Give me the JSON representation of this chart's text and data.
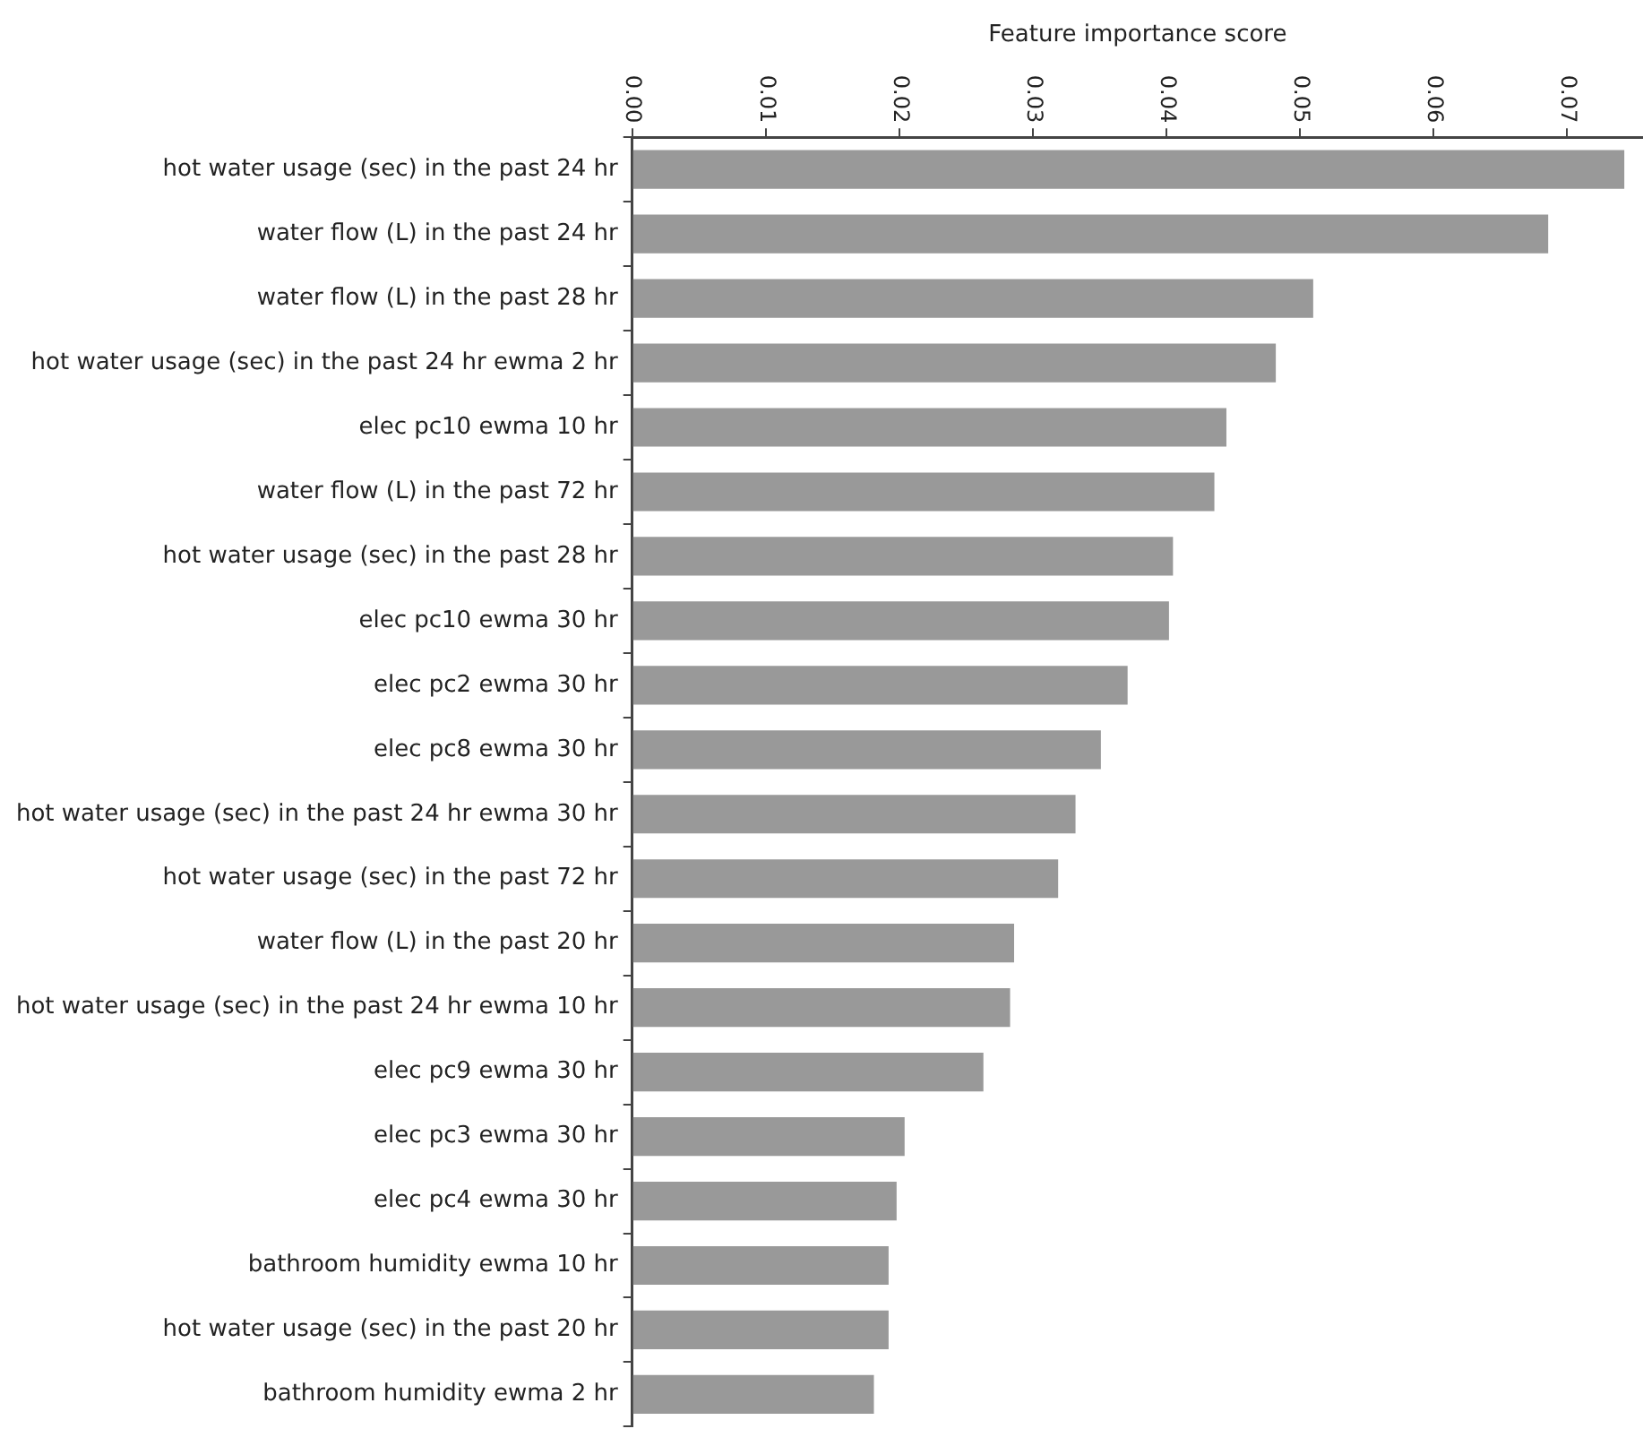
{
  "chart_data": {
    "type": "bar",
    "orientation": "horizontal",
    "xlabel": "Feature importance score",
    "categories": [
      "hot water usage (sec) in the past 24 hr",
      "water flow (L) in the past 24 hr",
      "water flow (L) in the past 28 hr",
      "hot water usage (sec) in the past 24 hr ewma 2 hr",
      "elec pc10 ewma 10 hr",
      "water flow (L) in the past 72 hr",
      "hot water usage (sec) in the past 28 hr",
      "elec pc10 ewma 30 hr",
      "elec pc2 ewma 30 hr",
      "elec pc8 ewma 30 hr",
      "hot water usage (sec) in the past 24 hr ewma 30 hr",
      "hot water usage (sec) in the past 72 hr",
      "water flow (L) in the past 20 hr",
      "hot water usage (sec) in the past 24 hr ewma 10 hr",
      "elec pc9 ewma 30 hr",
      "elec pc3 ewma 30 hr",
      "elec pc4 ewma 30 hr",
      "bathroom humidity ewma 10 hr",
      "hot water usage (sec) in the past 20 hr",
      "bathroom humidity ewma 2 hr"
    ],
    "values": [
      0.0743,
      0.0686,
      0.051,
      0.0482,
      0.0445,
      0.0436,
      0.0405,
      0.0402,
      0.0371,
      0.0351,
      0.0332,
      0.0319,
      0.0286,
      0.0283,
      0.0263,
      0.0204,
      0.0198,
      0.0192,
      0.0192,
      0.0181
    ],
    "color": "#999999",
    "xlim": [
      0,
      0.0757
    ],
    "xticks": [
      {
        "value": 0,
        "label": "0.00"
      },
      {
        "value": 0.01,
        "label": "0.01"
      },
      {
        "value": 0.02,
        "label": "0.02"
      },
      {
        "value": 0.03,
        "label": "0.03"
      },
      {
        "value": 0.04,
        "label": "0.04"
      },
      {
        "value": 0.05,
        "label": "0.05"
      },
      {
        "value": 0.06,
        "label": "0.06"
      },
      {
        "value": 0.07,
        "label": "0.07"
      }
    ],
    "grid": false,
    "legend": false
  }
}
